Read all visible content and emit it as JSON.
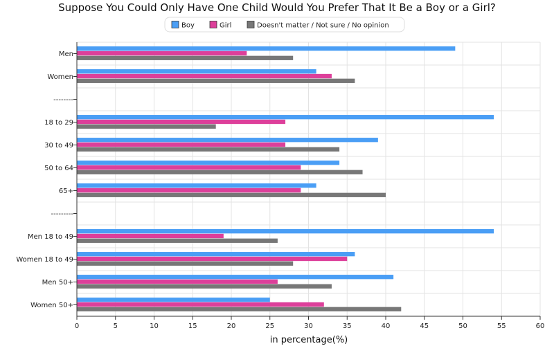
{
  "chart_data": {
    "type": "bar",
    "orientation": "horizontal",
    "title": "Suppose You Could Only Have One Child Would You Prefer That It Be a Boy or a Girl?",
    "xlabel": "in percentage(%)",
    "ylabel": "",
    "xlim": [
      0,
      60
    ],
    "xticks": [
      "0",
      "5",
      "10",
      "15",
      "20",
      "25",
      "30",
      "35",
      "40",
      "45",
      "50",
      "55",
      "60"
    ],
    "grid": true,
    "legend_position": "top-center",
    "categories": [
      "Men",
      "Women",
      "--------",
      "18 to 29",
      "30 to 49",
      "50 to 64",
      "65+",
      "---------",
      "Men 18 to 49",
      "Women 18 to 49",
      "Men 50+",
      "Women 50+"
    ],
    "series": [
      {
        "name": "Boy",
        "color": "#4a9ef5",
        "values": [
          49,
          31,
          null,
          54,
          39,
          34,
          31,
          null,
          54,
          36,
          41,
          25
        ]
      },
      {
        "name": "Girl",
        "color": "#dd3f9a",
        "values": [
          22,
          33,
          null,
          27,
          27,
          29,
          29,
          null,
          19,
          35,
          26,
          32
        ]
      },
      {
        "name": "Doesn't matter / Not sure / No opinion",
        "color": "#777777",
        "values": [
          28,
          36,
          null,
          18,
          34,
          37,
          40,
          null,
          26,
          28,
          33,
          42
        ]
      }
    ]
  }
}
